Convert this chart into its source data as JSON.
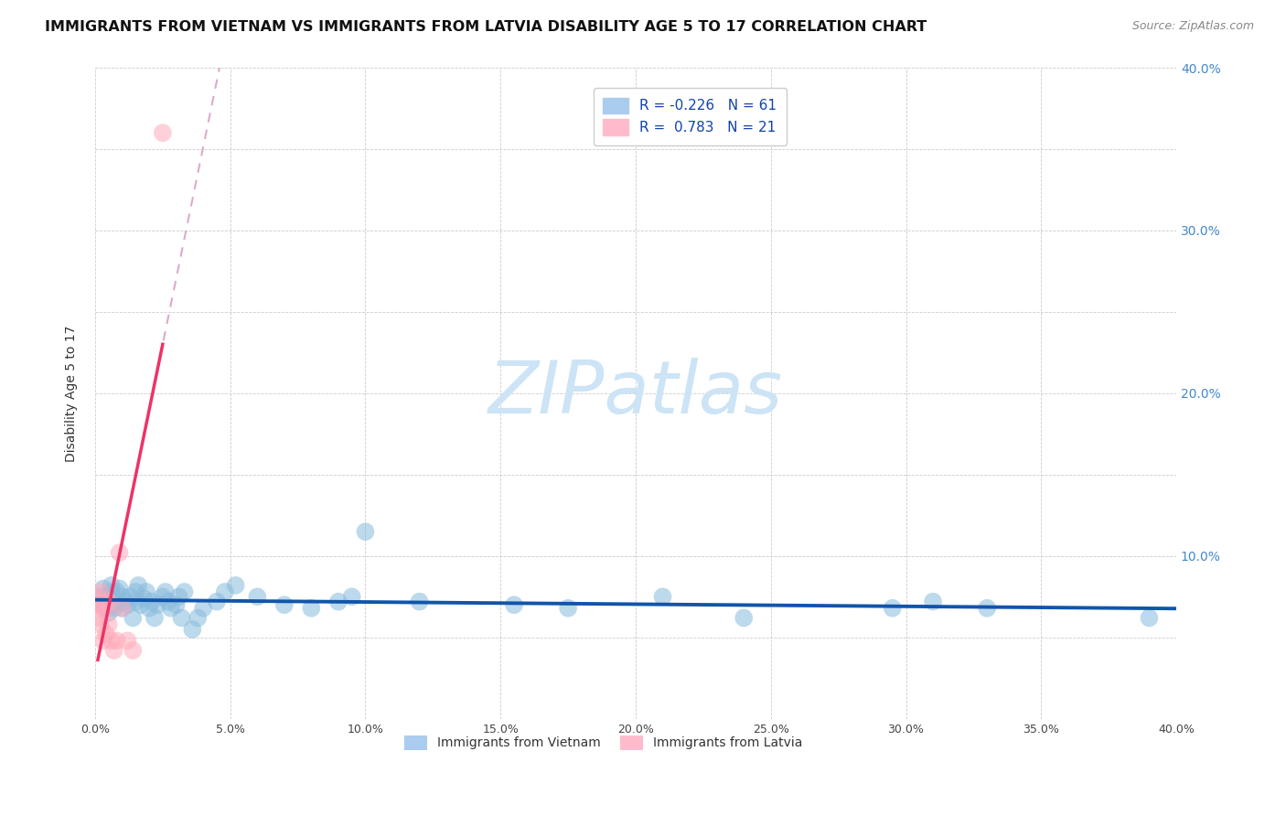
{
  "title": "IMMIGRANTS FROM VIETNAM VS IMMIGRANTS FROM LATVIA DISABILITY AGE 5 TO 17 CORRELATION CHART",
  "source": "Source: ZipAtlas.com",
  "ylabel": "Disability Age 5 to 17",
  "legend_label_vietnam": "Immigrants from Vietnam",
  "legend_label_latvia": "Immigrants from Latvia",
  "r_vietnam": -0.226,
  "n_vietnam": 61,
  "r_latvia": 0.783,
  "n_latvia": 21,
  "xlim": [
    0.0,
    0.4
  ],
  "ylim": [
    0.0,
    0.4
  ],
  "background_color": "#ffffff",
  "blue_dot_color": "#88bbdd",
  "pink_dot_color": "#ffaabb",
  "trend_blue": "#1155aa",
  "trend_pink": "#ee3366",
  "trend_pink_dash": "#ddaacc",
  "watermark_color": "#cce4f5",
  "vietnam_x": [
    0.002,
    0.002,
    0.003,
    0.003,
    0.004,
    0.004,
    0.005,
    0.005,
    0.005,
    0.006,
    0.006,
    0.007,
    0.007,
    0.008,
    0.008,
    0.009,
    0.01,
    0.01,
    0.011,
    0.012,
    0.013,
    0.014,
    0.015,
    0.015,
    0.016,
    0.017,
    0.018,
    0.019,
    0.02,
    0.021,
    0.022,
    0.023,
    0.025,
    0.026,
    0.027,
    0.028,
    0.03,
    0.031,
    0.032,
    0.033,
    0.036,
    0.038,
    0.04,
    0.045,
    0.048,
    0.052,
    0.06,
    0.07,
    0.08,
    0.09,
    0.095,
    0.1,
    0.12,
    0.155,
    0.175,
    0.21,
    0.24,
    0.295,
    0.31,
    0.33,
    0.39
  ],
  "vietnam_y": [
    0.07,
    0.075,
    0.072,
    0.08,
    0.075,
    0.068,
    0.07,
    0.075,
    0.065,
    0.078,
    0.082,
    0.07,
    0.068,
    0.072,
    0.078,
    0.08,
    0.075,
    0.068,
    0.072,
    0.07,
    0.075,
    0.062,
    0.078,
    0.072,
    0.082,
    0.07,
    0.074,
    0.078,
    0.068,
    0.072,
    0.062,
    0.07,
    0.075,
    0.078,
    0.072,
    0.068,
    0.07,
    0.075,
    0.062,
    0.078,
    0.055,
    0.062,
    0.068,
    0.072,
    0.078,
    0.082,
    0.075,
    0.07,
    0.068,
    0.072,
    0.075,
    0.115,
    0.072,
    0.07,
    0.068,
    0.075,
    0.062,
    0.068,
    0.072,
    0.068,
    0.062
  ],
  "latvia_x": [
    0.001,
    0.001,
    0.001,
    0.002,
    0.002,
    0.002,
    0.002,
    0.003,
    0.003,
    0.004,
    0.004,
    0.005,
    0.005,
    0.006,
    0.007,
    0.008,
    0.009,
    0.01,
    0.012,
    0.014,
    0.025
  ],
  "latvia_y": [
    0.062,
    0.07,
    0.075,
    0.068,
    0.078,
    0.058,
    0.072,
    0.07,
    0.048,
    0.068,
    0.052,
    0.072,
    0.058,
    0.048,
    0.042,
    0.048,
    0.102,
    0.068,
    0.048,
    0.042,
    0.36
  ]
}
